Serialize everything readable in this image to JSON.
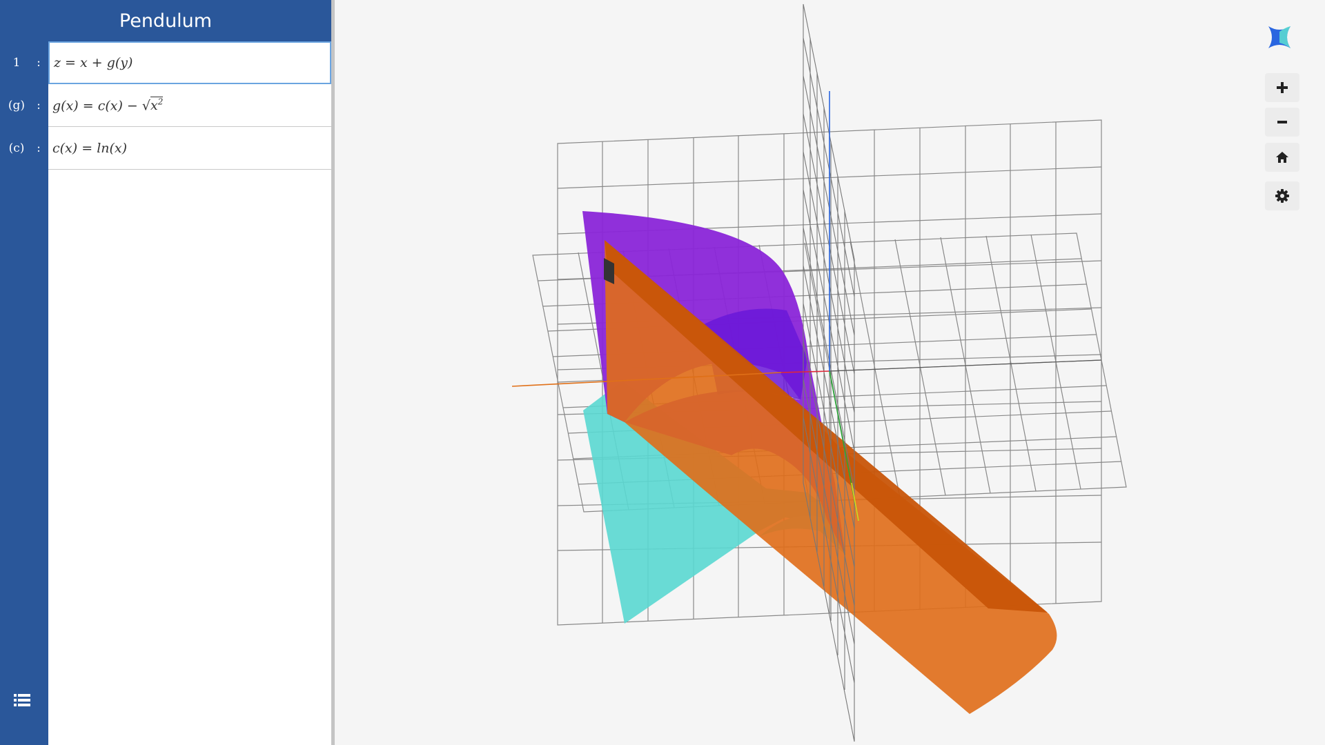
{
  "app": {
    "title": "Pendulum"
  },
  "expressions": [
    {
      "label": "1",
      "colon": ":",
      "lhs": "z",
      "rhs": "x + g(y)",
      "active": true
    },
    {
      "label": "(g)",
      "colon": ":",
      "lhs": "g(x)",
      "rhs": "c(x) − √",
      "radicand": "x",
      "exponent": "2"
    },
    {
      "label": "(c)",
      "colon": ":",
      "lhs": "c(x)",
      "rhs": "ln(x)"
    }
  ],
  "controls": [
    {
      "name": "zoom-in-button",
      "icon": "plus-icon"
    },
    {
      "name": "zoom-out-button",
      "icon": "minus-icon"
    },
    {
      "name": "home-button",
      "icon": "home-icon"
    },
    {
      "name": "settings-button",
      "icon": "gear-icon"
    }
  ],
  "icons": {
    "logo": "app-logo-icon",
    "list_toggle": "list-icon"
  },
  "colors": {
    "sidebar": "#2a579a",
    "surface_orange": "#e06d18",
    "surface_purple": "#8a25d8",
    "surface_cyan": "#5ad8d2",
    "axis_x": "#e0283a",
    "axis_y": "#2aa838",
    "axis_z": "#2a66e0"
  }
}
